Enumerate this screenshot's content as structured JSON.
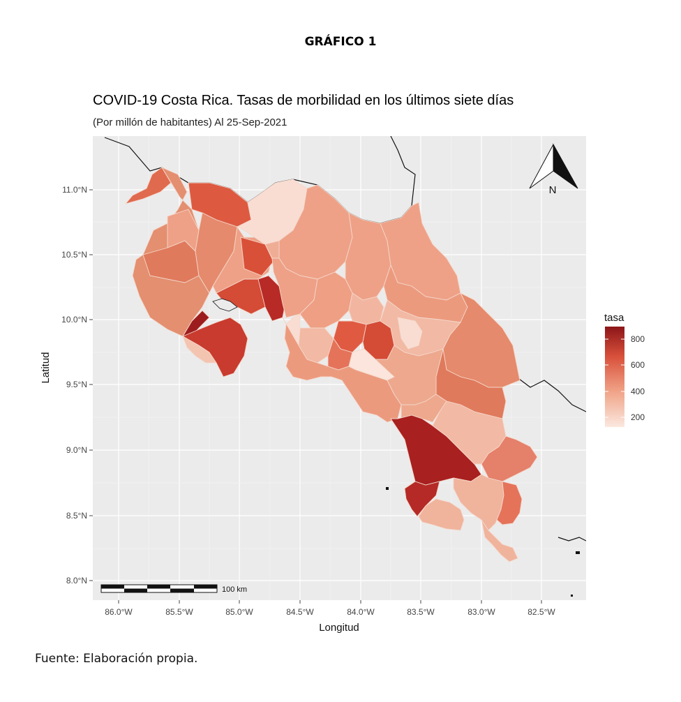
{
  "figure_heading": "GRÁFICO 1",
  "map": {
    "title": "COVID-19 Costa Rica. Tasas de morbilidad en los últimos siete días",
    "subtitle": "(Por millón de habitantes) Al 25-Sep-2021",
    "x_axis_title": "Longitud",
    "y_axis_title": "Latitud",
    "x_ticks": [
      "86.0°W",
      "85.5°W",
      "85.0°W",
      "84.5°W",
      "84.0°W",
      "83.5°W",
      "83.0°W",
      "82.5°W"
    ],
    "y_ticks": [
      "11.0°N",
      "10.5°N",
      "10.0°N",
      "9.5°N",
      "9.0°N",
      "8.5°N",
      "8.0°N"
    ],
    "north_label": "N",
    "scale_bar_label": "100 km",
    "legend": {
      "title": "tasa",
      "ticks": [
        "800",
        "600",
        "400",
        "200"
      ],
      "low_color": "#fbe8e0",
      "high_color": "#8c1519"
    },
    "panel_bg": "#ebebeb"
  },
  "source_note": "Fuente: Elaboración propia."
}
